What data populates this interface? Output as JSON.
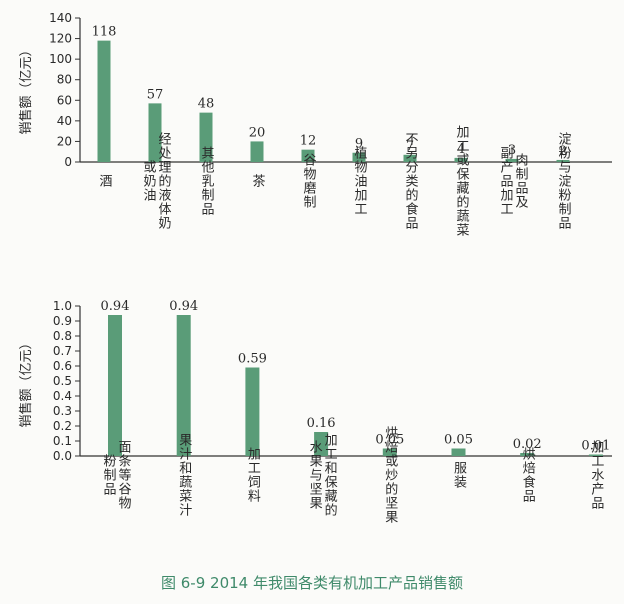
{
  "caption": "图 6-9   2014 年我国各类有机加工产品销售额",
  "colors": {
    "bar": "#5a9c78",
    "axis": "#333333",
    "caption": "#3f8a6a"
  },
  "chart_data": [
    {
      "type": "bar",
      "ylabel": "销售额（亿元）",
      "ylim": [
        0,
        140
      ],
      "yticks": [
        "0",
        "20",
        "40",
        "60",
        "80",
        "100",
        "120",
        "140"
      ],
      "categories": [
        "酒",
        "经处理的液体奶或奶油",
        "其他乳制品",
        "茶",
        "谷物磨制",
        "植物油加工",
        "不另分类的食品",
        "加工或保藏的蔬菜",
        "肉制品及副产品加工",
        "淀粉与淀粉制品"
      ],
      "category_lines": [
        [
          "酒"
        ],
        [
          "经处理的液体奶",
          "或奶油"
        ],
        [
          "其他乳制品"
        ],
        [
          "茶"
        ],
        [
          "谷物磨制"
        ],
        [
          "植物油加工"
        ],
        [
          "不另分类的食品"
        ],
        [
          "加工或保藏的蔬菜"
        ],
        [
          "肉制品及",
          "副产品加工"
        ],
        [
          "淀粉与淀粉制品"
        ]
      ],
      "values": [
        118,
        57,
        48,
        20,
        12,
        9,
        7,
        4,
        3,
        2
      ],
      "value_labels": [
        "118",
        "57",
        "48",
        "20",
        "12",
        "9",
        "7",
        "4",
        "3",
        "2"
      ]
    },
    {
      "type": "bar",
      "ylabel": "销售额（亿元）",
      "ylim": [
        0,
        1.0
      ],
      "yticks": [
        "0.0",
        "0.1",
        "0.2",
        "0.3",
        "0.4",
        "0.5",
        "0.6",
        "0.7",
        "0.8",
        "0.9",
        "1.0"
      ],
      "categories": [
        "面条等谷物粉制品",
        "果汁和蔬菜汁",
        "加工饲料",
        "加工和保藏的水果与坚果",
        "烘焙或炒的坚果",
        "服装",
        "烘焙食品",
        "加工水产品"
      ],
      "category_lines": [
        [
          "面条等谷物",
          "粉制品"
        ],
        [
          "果汁和蔬菜汁"
        ],
        [
          "加工饲料"
        ],
        [
          "加工和保藏的",
          "水果与坚果"
        ],
        [
          "烘焙或炒的坚果"
        ],
        [
          "服装"
        ],
        [
          "烘焙食品"
        ],
        [
          "加工水产品"
        ]
      ],
      "values": [
        0.94,
        0.94,
        0.59,
        0.16,
        0.05,
        0.05,
        0.02,
        0.01
      ],
      "value_labels": [
        "0.94",
        "0.94",
        "0.59",
        "0.16",
        "0.05",
        "0.05",
        "0.02",
        "0.01"
      ]
    }
  ]
}
